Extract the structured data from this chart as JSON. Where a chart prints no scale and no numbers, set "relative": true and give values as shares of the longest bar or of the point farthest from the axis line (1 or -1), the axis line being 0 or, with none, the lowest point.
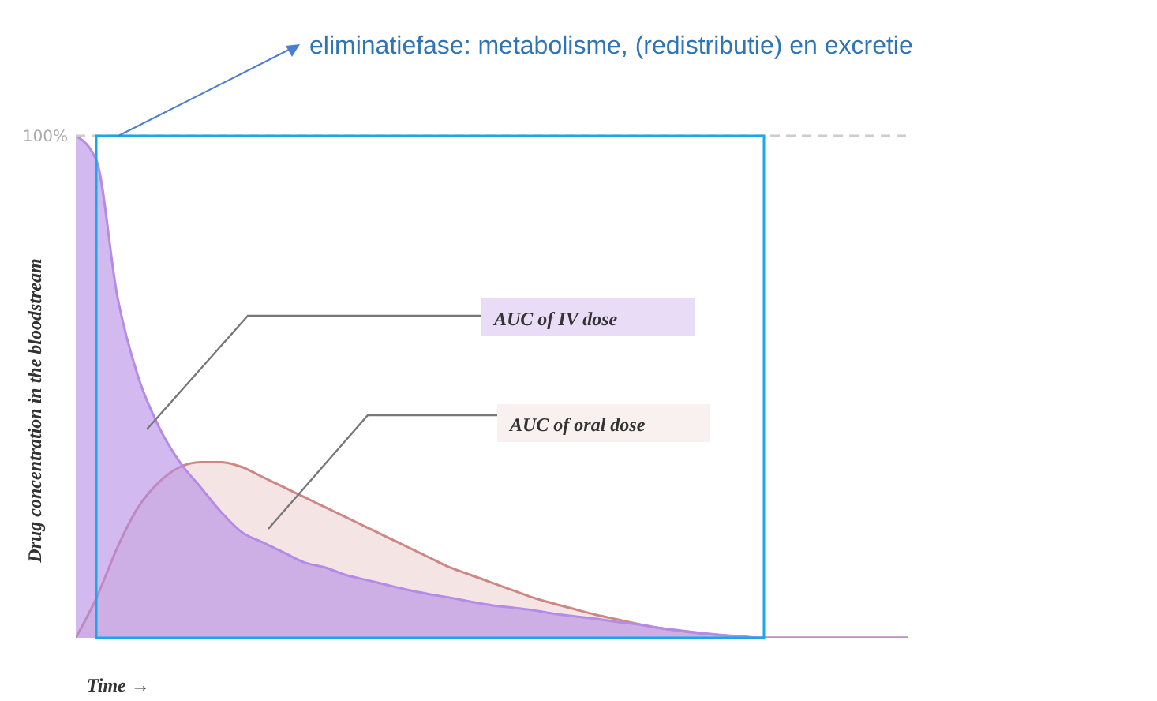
{
  "chart_data": {
    "type": "area",
    "relative": true,
    "xlabel": "Time →",
    "ylabel": "Drug concentration in the bloodstream",
    "categories": [
      null,
      null,
      null,
      null,
      null,
      null,
      null,
      null,
      null,
      null,
      null,
      null,
      null,
      null,
      null,
      null,
      null,
      null,
      null,
      null,
      null,
      null,
      null,
      null,
      null,
      null,
      null,
      null,
      null,
      null,
      null,
      null,
      null,
      null,
      null,
      null,
      null,
      null,
      null,
      null,
      null
    ],
    "series": [
      {
        "name": "AUC of oral dose",
        "color": "#cf8784",
        "values": [
          0,
          0.08,
          0.18,
          0.26,
          0.31,
          0.34,
          0.35,
          0.35,
          0.34,
          0.32,
          0.3,
          0.28,
          0.26,
          0.24,
          0.22,
          0.2,
          0.18,
          0.16,
          0.14,
          0.125,
          0.11,
          0.095,
          0.08,
          0.068,
          0.057,
          0.046,
          0.037,
          0.028,
          0.02,
          0.014,
          0.009,
          0.005,
          0.002,
          0,
          0,
          0,
          0,
          0,
          0,
          0,
          0
        ]
      },
      {
        "name": "AUC of IV dose",
        "color": "#b48be6",
        "values": [
          1,
          0.95,
          0.68,
          0.52,
          0.42,
          0.35,
          0.3,
          0.25,
          0.21,
          0.19,
          0.17,
          0.15,
          0.14,
          0.125,
          0.115,
          0.105,
          0.095,
          0.087,
          0.08,
          0.072,
          0.065,
          0.06,
          0.055,
          0.048,
          0.043,
          0.038,
          0.032,
          0.027,
          0.02,
          0.015,
          0.01,
          0.006,
          0.003,
          0,
          0,
          0,
          0,
          0,
          0,
          0,
          0
        ]
      }
    ],
    "ref_lines": [
      {
        "axis": "y",
        "value": 1,
        "label": "100%",
        "color": "#cccccc",
        "line_style": "dashed"
      }
    ],
    "annotations": [
      "eliminatiefase: metabolisme, (redistributie) en excretie"
    ]
  }
}
